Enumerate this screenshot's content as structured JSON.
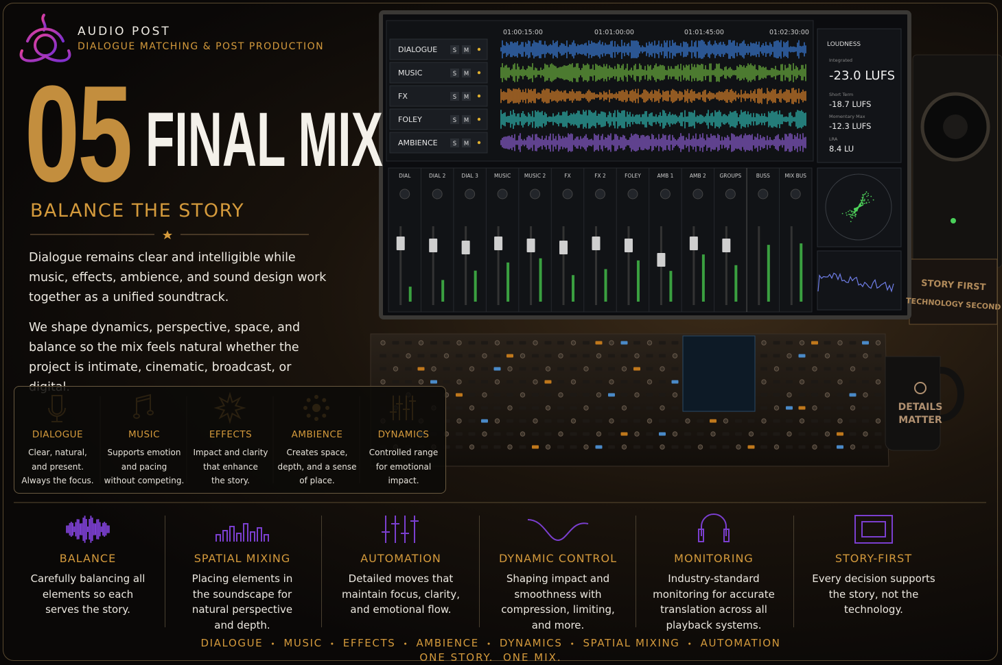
{
  "header": {
    "brand": "AUDIO POST",
    "subtitle": "DIALOGUE MATCHING & POST PRODUCTION"
  },
  "hero": {
    "number": "05",
    "title": "FINAL MIX",
    "tagline": "BALANCE THE STORY",
    "paragraphs": [
      "Dialogue remains clear and intelligible while music, effects, ambience, and sound design work together as a unified soundtrack.",
      "We shape dynamics, perspective, space, and balance so the mix feels natural whether the project is intimate, cinematic, broadcast, or digital."
    ]
  },
  "features": [
    {
      "title": "DIALOGUE",
      "lines": [
        "Clear, natural,",
        "and present.",
        "Always the focus."
      ]
    },
    {
      "title": "MUSIC",
      "lines": [
        "Supports emotion",
        "and pacing",
        "without competing."
      ]
    },
    {
      "title": "EFFECTS",
      "lines": [
        "Impact and clarity",
        "that enhance",
        "the story."
      ]
    },
    {
      "title": "AMBIENCE",
      "lines": [
        "Creates space,",
        "depth, and a sense",
        "of place."
      ]
    },
    {
      "title": "DYNAMICS",
      "lines": [
        "Controlled range",
        "for emotional",
        "impact."
      ]
    }
  ],
  "screen": {
    "tracks": [
      "DIALOGUE",
      "MUSIC",
      "FX",
      "FOLEY",
      "AMBIENCE"
    ],
    "solo": "S",
    "mute": "M",
    "timecodes": [
      "01:00:15:00",
      "01:01:00:00",
      "01:01:45:00",
      "01:02:30:00"
    ],
    "loudness": {
      "title": "LOUDNESS",
      "items": [
        {
          "label": "Integrated",
          "value": "-23.0 LUFS"
        },
        {
          "label": "Short Term",
          "value": "-18.7 LUFS"
        },
        {
          "label": "Momentary Max",
          "value": "-12.3 LUFS"
        },
        {
          "label": "LRA",
          "value": "8.4 LU"
        }
      ]
    },
    "channels": [
      "DIAL",
      "DIAL 2",
      "DIAL 3",
      "MUSIC",
      "MUSIC 2",
      "FX",
      "FX 2",
      "FOLEY",
      "AMB 1",
      "AMB 2",
      "GROUPS",
      "BUSS",
      "MIX BUS"
    ]
  },
  "decor": {
    "plaque": [
      "STORY FIRST",
      "TECHNOLOGY SECOND"
    ],
    "mug": [
      "DETAILS",
      "MATTER"
    ]
  },
  "pillars": [
    {
      "title": "BALANCE",
      "lines": [
        "Carefully balancing all",
        "elements so each",
        "serves the story."
      ]
    },
    {
      "title": "SPATIAL MIXING",
      "lines": [
        "Placing elements in",
        "the soundscape for",
        "natural perspective",
        "and depth."
      ]
    },
    {
      "title": "AUTOMATION",
      "lines": [
        "Detailed moves that",
        "maintain focus, clarity,",
        "and emotional flow."
      ]
    },
    {
      "title": "DYNAMIC CONTROL",
      "lines": [
        "Shaping impact and",
        "smoothness with",
        "compression, limiting,",
        "and more."
      ]
    },
    {
      "title": "MONITORING",
      "lines": [
        "Industry-standard",
        "monitoring for accurate",
        "translation across all",
        "playback systems."
      ]
    },
    {
      "title": "STORY-FIRST",
      "lines": [
        "Every decision supports",
        "the story, not the",
        "technology."
      ]
    }
  ],
  "footer": {
    "keywords": [
      "DIALOGUE",
      "MUSIC",
      "EFFECTS",
      "AMBIENCE",
      "DYNAMICS",
      "SPATIAL MIXING",
      "AUTOMATION"
    ],
    "tagline": "ONE STORY.  ONE MIX."
  }
}
